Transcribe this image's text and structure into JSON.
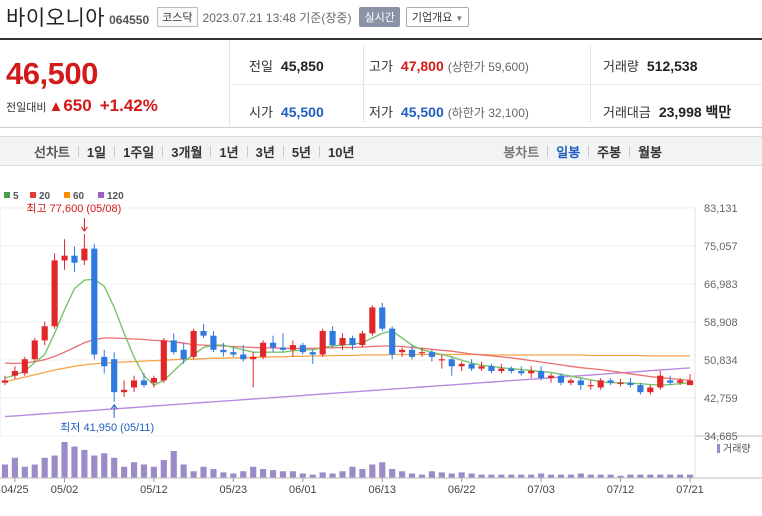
{
  "header": {
    "stock_name": "바이오니아",
    "stock_code": "064550",
    "market": "코스닥",
    "datetime": "2023.07.21 13:48 기준(장중)",
    "realtime_label": "실시간",
    "company_info_label": "기업개요"
  },
  "quote": {
    "price": "46,500",
    "change_label": "전일대비",
    "change_arrow": "▲",
    "change_value": "650",
    "change_pct": "+1.42%",
    "prev_label": "전일",
    "prev_value": "45,850",
    "high_label": "고가",
    "high_value": "47,800",
    "upper_limit": "(상한가 59,600)",
    "volume_label": "거래량",
    "volume_value": "512,538",
    "open_label": "시가",
    "open_value": "45,500",
    "low_label": "저가",
    "low_value": "45,500",
    "lower_limit": "(하한가 32,100)",
    "amount_label": "거래대금",
    "amount_value": "23,998 백만"
  },
  "toolbar": {
    "line_chart": "선차트",
    "periods": [
      "1일",
      "1주일",
      "3개월",
      "1년",
      "3년",
      "5년",
      "10년"
    ],
    "candle_chart": "봉차트",
    "candle_periods": [
      "일봉",
      "주봉",
      "월봉"
    ],
    "active_candle": "일봉"
  },
  "chart_data": {
    "type": "candlestick",
    "ylim": [
      34685,
      83131
    ],
    "y_ticks": [
      "83,131",
      "75,057",
      "66,983",
      "58,908",
      "50,834",
      "42,759",
      "34,685"
    ],
    "x_labels": [
      {
        "label": "04/25",
        "index": 1
      },
      {
        "label": "05/02",
        "index": 6
      },
      {
        "label": "05/12",
        "index": 15
      },
      {
        "label": "05/23",
        "index": 23
      },
      {
        "label": "06/01",
        "index": 30
      },
      {
        "label": "06/13",
        "index": 38
      },
      {
        "label": "06/22",
        "index": 46
      },
      {
        "label": "07/03",
        "index": 54
      },
      {
        "label": "07/12",
        "index": 62
      },
      {
        "label": "07/21",
        "index": 69
      }
    ],
    "legend": [
      {
        "name": "5",
        "color": "#43a047"
      },
      {
        "name": "20",
        "color": "#e53935"
      },
      {
        "name": "60",
        "color": "#fb8c00"
      },
      {
        "name": "120",
        "color": "#9c5ec8"
      }
    ],
    "volume_label": "거래량",
    "annotations": {
      "high": {
        "text": "최고 77,600 (05/08)",
        "value": 77600,
        "index": 8
      },
      "low": {
        "text": "최저 41,950 (05/11)",
        "value": 41950,
        "index": 11
      }
    },
    "up_color": "#e0282b",
    "down_color": "#2f7ae0",
    "candles": [
      [
        46000,
        47500,
        45500,
        46500
      ],
      [
        47500,
        49500,
        46800,
        48500
      ],
      [
        48000,
        51500,
        47500,
        51000
      ],
      [
        51000,
        55500,
        50500,
        55000
      ],
      [
        55000,
        59000,
        54000,
        58000
      ],
      [
        58000,
        73500,
        57500,
        72000
      ],
      [
        72000,
        76500,
        70000,
        73000
      ],
      [
        73000,
        75000,
        69500,
        71500
      ],
      [
        72000,
        77600,
        71000,
        74500
      ],
      [
        74500,
        75500,
        51000,
        52000
      ],
      [
        51500,
        53000,
        48000,
        49500
      ],
      [
        51000,
        52500,
        41950,
        44000
      ],
      [
        44000,
        46500,
        43000,
        44500
      ],
      [
        45000,
        47500,
        44000,
        46500
      ],
      [
        46500,
        48000,
        45000,
        45500
      ],
      [
        46000,
        47500,
        45000,
        47000
      ],
      [
        46500,
        55500,
        46000,
        55000
      ],
      [
        55000,
        56500,
        52000,
        52500
      ],
      [
        53000,
        54500,
        50000,
        51000
      ],
      [
        51500,
        57500,
        51000,
        57000
      ],
      [
        57000,
        58500,
        55500,
        56000
      ],
      [
        56000,
        57000,
        52500,
        53000
      ],
      [
        53000,
        54500,
        51500,
        52500
      ],
      [
        52500,
        53500,
        51500,
        52000
      ],
      [
        52000,
        54000,
        50500,
        51000
      ],
      [
        51000,
        52500,
        45000,
        51500
      ],
      [
        51500,
        55000,
        51000,
        54500
      ],
      [
        54500,
        56000,
        52500,
        53500
      ],
      [
        53500,
        56500,
        52500,
        53000
      ],
      [
        53000,
        55000,
        51500,
        54000
      ],
      [
        54000,
        54500,
        52000,
        52500
      ],
      [
        52500,
        53000,
        50000,
        52000
      ],
      [
        52000,
        57500,
        51500,
        57000
      ],
      [
        57000,
        58000,
        53500,
        54000
      ],
      [
        54000,
        56500,
        53000,
        55500
      ],
      [
        55500,
        56000,
        53000,
        54000
      ],
      [
        54000,
        57000,
        53500,
        56500
      ],
      [
        56500,
        62500,
        56000,
        62000
      ],
      [
        62000,
        63000,
        57000,
        57500
      ],
      [
        57500,
        58000,
        51000,
        52000
      ],
      [
        52500,
        53500,
        51500,
        53000
      ],
      [
        53000,
        54000,
        51000,
        51500
      ],
      [
        52500,
        53500,
        51500,
        52500
      ],
      [
        52500,
        53000,
        50500,
        51500
      ],
      [
        51000,
        52000,
        49000,
        51000
      ],
      [
        51000,
        51500,
        47500,
        49500
      ],
      [
        49500,
        50500,
        48500,
        50000
      ],
      [
        50000,
        51000,
        48500,
        49000
      ],
      [
        49000,
        50500,
        48500,
        49500
      ],
      [
        49500,
        50000,
        48000,
        48500
      ],
      [
        48500,
        50000,
        48000,
        49000
      ],
      [
        49000,
        49500,
        48000,
        48500
      ],
      [
        48500,
        49500,
        47500,
        48000
      ],
      [
        48000,
        49500,
        47000,
        48500
      ],
      [
        48500,
        49500,
        46500,
        47000
      ],
      [
        47000,
        48000,
        46000,
        47500
      ],
      [
        47500,
        48000,
        45500,
        46000
      ],
      [
        46000,
        47000,
        45500,
        46500
      ],
      [
        46500,
        47000,
        44500,
        45500
      ],
      [
        45500,
        46500,
        44500,
        45500
      ],
      [
        45000,
        47000,
        44500,
        46500
      ],
      [
        46500,
        47000,
        45500,
        46000
      ],
      [
        46000,
        46800,
        45200,
        46000
      ],
      [
        46000,
        47000,
        45000,
        45500
      ],
      [
        45500,
        46000,
        43500,
        44000
      ],
      [
        44000,
        45500,
        43500,
        45000
      ],
      [
        45000,
        48500,
        44500,
        47500
      ],
      [
        46500,
        47500,
        45500,
        46000
      ],
      [
        46000,
        47000,
        45500,
        46500
      ],
      [
        45500,
        47800,
        45500,
        46500
      ]
    ],
    "volume": [
      12,
      18,
      10,
      12,
      18,
      20,
      32,
      28,
      25,
      20,
      22,
      18,
      10,
      14,
      12,
      10,
      16,
      24,
      12,
      6,
      10,
      8,
      5,
      4,
      6,
      10,
      8,
      7,
      6,
      6,
      4,
      3,
      5,
      4,
      6,
      10,
      8,
      12,
      14,
      8,
      6,
      4,
      3,
      6,
      5,
      4,
      5,
      4,
      3,
      3,
      3,
      3,
      3,
      3,
      4,
      3,
      3,
      3,
      4,
      3,
      3,
      3,
      2,
      3,
      3,
      3,
      3,
      3,
      3,
      3
    ],
    "ma5": [
      47000,
      47600,
      48500,
      50300,
      52000,
      56500,
      61500,
      66000,
      67800,
      68000,
      66500,
      62000,
      56500,
      51500,
      47500,
      45500,
      46500,
      48500,
      50500,
      52000,
      53500,
      54000,
      54000,
      53500,
      53000,
      52500,
      52500,
      52500,
      52500,
      52800,
      53000,
      53000,
      53500,
      53800,
      54000,
      54200,
      54500,
      55500,
      56500,
      57000,
      55500,
      54000,
      53000,
      52500,
      52000,
      51500,
      50800,
      50200,
      49700,
      49500,
      49200,
      49000,
      48800,
      48600,
      48400,
      48200,
      47800,
      47400,
      47000,
      46600,
      46200,
      46000,
      46000,
      45900,
      45800,
      45600,
      45500,
      45600,
      45800,
      46000
    ],
    "ma20": [
      50200,
      50100,
      50200,
      50500,
      50900,
      51600,
      52500,
      53500,
      54500,
      55200,
      55500,
      55500,
      55400,
      55300,
      55200,
      55000,
      54900,
      54700,
      54400,
      54100,
      54000,
      53900,
      53800,
      53700,
      53600,
      53500,
      53400,
      53400,
      53300,
      53300,
      53300,
      53300,
      53400,
      53400,
      53500,
      53500,
      53600,
      53700,
      53800,
      53800,
      53700,
      53500,
      53300,
      53100,
      52900,
      52700,
      52400,
      52100,
      51900,
      51700,
      51500,
      51300,
      51000,
      50700,
      50400,
      50100,
      49800,
      49500,
      49200,
      49000,
      48800,
      48500,
      48200,
      47900,
      47600,
      47300,
      47100,
      46900,
      46700,
      46500
    ],
    "ma60": [
      46200,
      46700,
      47200,
      47700,
      48200,
      48700,
      49100,
      49500,
      49800,
      50000,
      50200,
      50300,
      50400,
      50500,
      50600,
      50700,
      50800,
      50900,
      51000,
      51000,
      51100,
      51200,
      51200,
      51300,
      51300,
      51400,
      51400,
      51500,
      51500,
      51600,
      51600,
      51700,
      51700,
      51800,
      51800,
      51800,
      51900,
      51900,
      51900,
      52000,
      52000,
      52000,
      52000,
      52000,
      52000,
      52000,
      52000,
      52000,
      52000,
      51900,
      51900,
      51900,
      51900,
      51900,
      51900,
      51900,
      51900,
      51900,
      51900,
      51800,
      51800,
      51800,
      51800,
      51800,
      51800,
      51700,
      51700,
      51700,
      51700,
      51700
    ],
    "ma120": [
      38800,
      38950,
      39100,
      39250,
      39400,
      39550,
      39700,
      39850,
      40000,
      40150,
      40300,
      40450,
      40600,
      40750,
      40900,
      41050,
      41200,
      41350,
      41500,
      41650,
      41800,
      41950,
      42100,
      42250,
      42400,
      42550,
      42700,
      42850,
      43000,
      43150,
      43300,
      43450,
      43600,
      43750,
      43900,
      44050,
      44200,
      44350,
      44500,
      44650,
      44800,
      44950,
      45100,
      45250,
      45400,
      45550,
      45700,
      45850,
      46000,
      46150,
      46300,
      46450,
      46600,
      46750,
      46900,
      47050,
      47200,
      47350,
      47500,
      47650,
      47800,
      47950,
      48100,
      48250,
      48400,
      48550,
      48700,
      48850,
      49000,
      49150
    ]
  }
}
